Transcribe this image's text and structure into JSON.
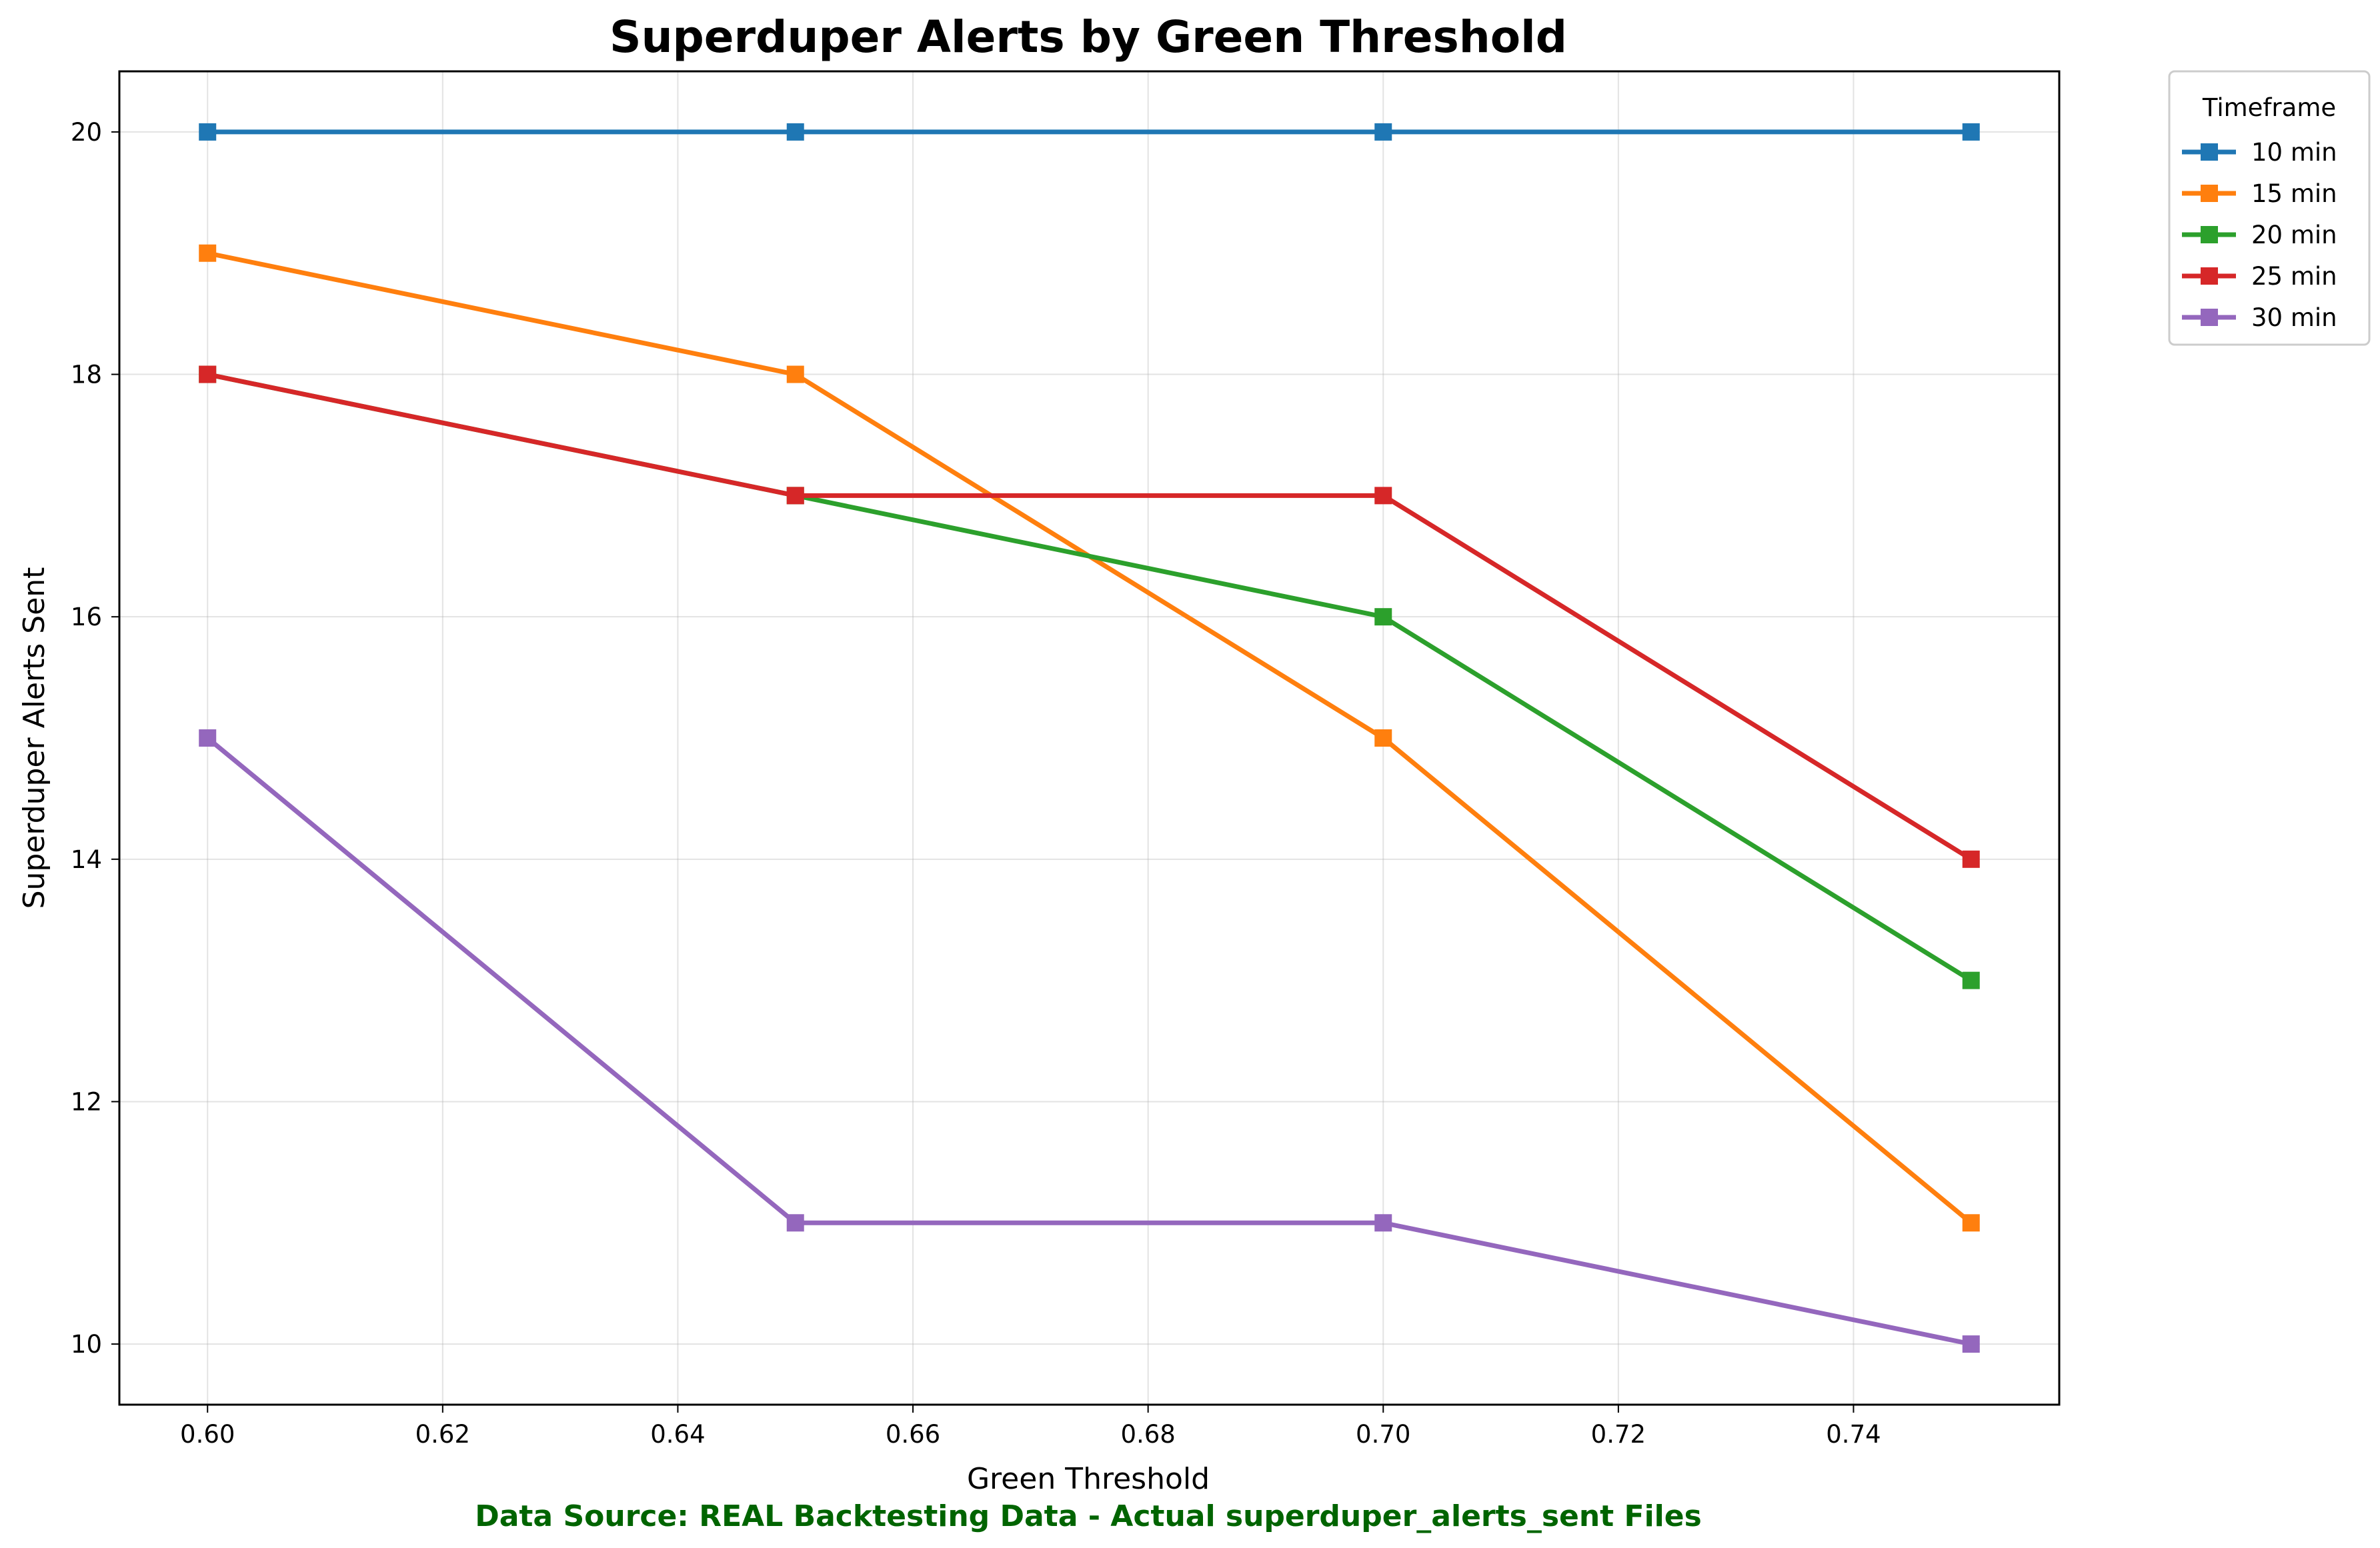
{
  "chart_data": {
    "type": "line",
    "title": "Superduper Alerts by Green Threshold",
    "xlabel": "Green Threshold",
    "ylabel": "Superduper Alerts Sent",
    "footnote": "Data Source: REAL Backtesting Data - Actual superduper_alerts_sent Files",
    "x": [
      0.6,
      0.65,
      0.7,
      0.75
    ],
    "xlim": [
      0.5925,
      0.7575
    ],
    "ylim": [
      9.5,
      20.5
    ],
    "xticks": [
      "0.60",
      "0.62",
      "0.64",
      "0.66",
      "0.68",
      "0.70",
      "0.72",
      "0.74"
    ],
    "xtick_values": [
      0.6,
      0.62,
      0.64,
      0.66,
      0.68,
      0.7,
      0.72,
      0.74
    ],
    "yticks": [
      "10",
      "12",
      "14",
      "16",
      "18",
      "20"
    ],
    "ytick_values": [
      10,
      12,
      14,
      16,
      18,
      20
    ],
    "grid": true,
    "legend": {
      "title": "Timeframe",
      "placement": "outside-top-right"
    },
    "marker": "square",
    "series": [
      {
        "name": "10 min",
        "color": "#1f77b4",
        "values": [
          20,
          20,
          20,
          20
        ]
      },
      {
        "name": "15 min",
        "color": "#ff7f0e",
        "values": [
          19,
          18,
          15,
          11
        ]
      },
      {
        "name": "20 min",
        "color": "#2ca02c",
        "values": [
          18,
          17,
          16,
          13
        ]
      },
      {
        "name": "25 min",
        "color": "#d62728",
        "values": [
          18,
          17,
          17,
          14
        ]
      },
      {
        "name": "30 min",
        "color": "#9467bd",
        "values": [
          15,
          11,
          11,
          10
        ]
      }
    ]
  }
}
